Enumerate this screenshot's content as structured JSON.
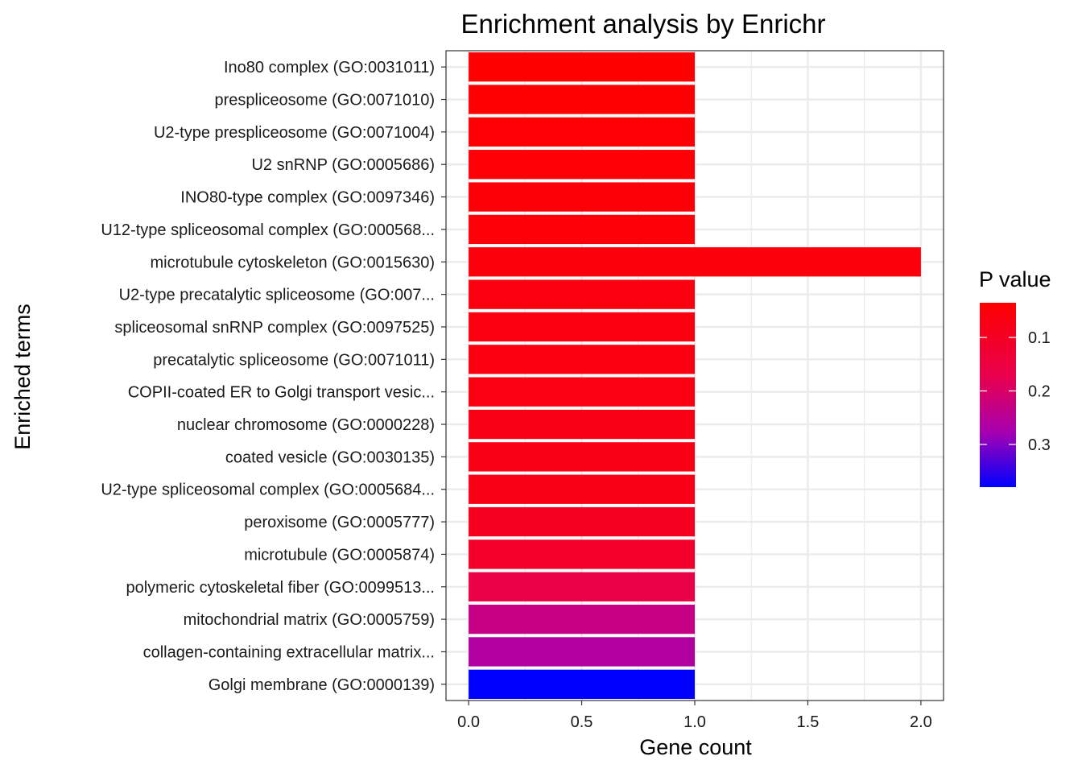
{
  "chart_data": {
    "type": "bar",
    "orientation": "horizontal",
    "title": "Enrichment analysis by Enrichr",
    "xlabel": "Gene count",
    "ylabel": "Enriched terms",
    "xlim": [
      -0.1,
      2.1
    ],
    "x_ticks": [
      "0.0",
      "0.5",
      "1.0",
      "1.5",
      "2.0"
    ],
    "grid": true,
    "categories": [
      "Ino80 complex (GO:0031011)",
      "prespliceosome (GO:0071010)",
      "U2-type prespliceosome (GO:0071004)",
      "U2 snRNP (GO:0005686)",
      "INO80-type complex (GO:0097346)",
      "U12-type spliceosomal complex (GO:000568...",
      "microtubule cytoskeleton (GO:0015630)",
      "U2-type precatalytic spliceosome (GO:007...",
      "spliceosomal snRNP complex (GO:0097525)",
      "precatalytic spliceosome (GO:0071011)",
      "COPII-coated ER to Golgi transport vesic...",
      "nuclear chromosome (GO:0000228)",
      "coated vesicle (GO:0030135)",
      "U2-type spliceosomal complex (GO:0005684...",
      "peroxisome (GO:0005777)",
      "microtubule (GO:0005874)",
      "polymeric cytoskeletal fiber (GO:0099513...",
      "mitochondrial matrix (GO:0005759)",
      "collagen-containing extracellular matrix...",
      "Golgi membrane (GO:0000139)"
    ],
    "values": [
      1,
      1,
      1,
      1,
      1,
      1,
      2,
      1,
      1,
      1,
      1,
      1,
      1,
      1,
      1,
      1,
      1,
      1,
      1,
      1
    ],
    "p_values": [
      0.035,
      0.038,
      0.041,
      0.044,
      0.047,
      0.05,
      0.056,
      0.06,
      0.062,
      0.064,
      0.068,
      0.07,
      0.072,
      0.074,
      0.09,
      0.11,
      0.16,
      0.23,
      0.26,
      0.38
    ],
    "color_scale": {
      "low_color": "#ff0000",
      "high_color": "#0000ff",
      "range": [
        0.035,
        0.38
      ]
    },
    "legend": {
      "title": "P value",
      "placement": "right",
      "ticks": [
        0.1,
        0.2,
        0.3
      ],
      "tick_labels": [
        "0.1",
        "0.2",
        "0.3"
      ]
    }
  }
}
